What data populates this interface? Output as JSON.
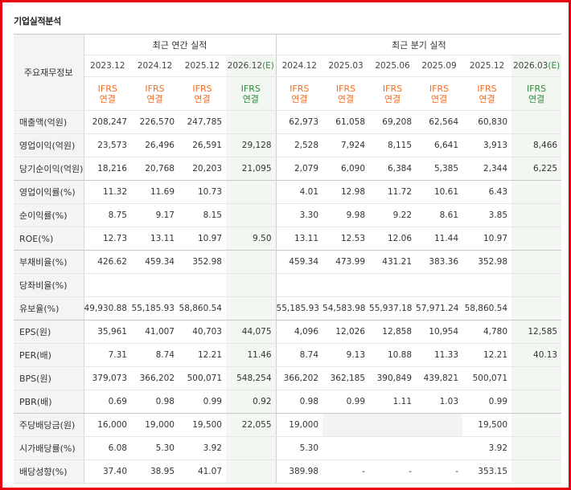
{
  "title": "기업실적분석",
  "corner_label": "주요재무정보",
  "groups": {
    "annual": "최근 연간 실적",
    "quarterly": "최근 분기 실적"
  },
  "periods": [
    {
      "label": "2023.12",
      "estimate": false
    },
    {
      "label": "2024.12",
      "estimate": false
    },
    {
      "label": "2025.12",
      "estimate": false
    },
    {
      "label": "2026.12",
      "estimate": true
    },
    {
      "label": "2024.12",
      "estimate": false
    },
    {
      "label": "2025.03",
      "estimate": false
    },
    {
      "label": "2025.06",
      "estimate": false
    },
    {
      "label": "2025.09",
      "estimate": false
    },
    {
      "label": "2025.12",
      "estimate": false
    },
    {
      "label": "2026.03",
      "estimate": true
    }
  ],
  "estimate_mark": "(E)",
  "accounting": {
    "line1": "IFRS",
    "line2": "연결"
  },
  "rows": [
    {
      "label": "매출액(억원)",
      "values": [
        "208,247",
        "226,570",
        "247,785",
        "",
        "62,973",
        "61,058",
        "69,208",
        "62,564",
        "60,830",
        ""
      ],
      "group_end": false
    },
    {
      "label": "영업이익(억원)",
      "values": [
        "23,573",
        "26,496",
        "26,591",
        "29,128",
        "2,528",
        "7,924",
        "8,115",
        "6,641",
        "3,913",
        "8,466"
      ],
      "group_end": false
    },
    {
      "label": "당기순이익(억원)",
      "values": [
        "18,216",
        "20,768",
        "20,203",
        "21,095",
        "2,079",
        "6,090",
        "6,384",
        "5,385",
        "2,344",
        "6,225"
      ],
      "group_end": true
    },
    {
      "label": "영업이익률(%)",
      "values": [
        "11.32",
        "11.69",
        "10.73",
        "",
        "4.01",
        "12.98",
        "11.72",
        "10.61",
        "6.43",
        ""
      ],
      "group_end": false
    },
    {
      "label": "순이익률(%)",
      "values": [
        "8.75",
        "9.17",
        "8.15",
        "",
        "3.30",
        "9.98",
        "9.22",
        "8.61",
        "3.85",
        ""
      ],
      "group_end": false
    },
    {
      "label": "ROE(%)",
      "values": [
        "12.73",
        "13.11",
        "10.97",
        "9.50",
        "13.11",
        "12.53",
        "12.06",
        "11.44",
        "10.97",
        ""
      ],
      "group_end": true
    },
    {
      "label": "부채비율(%)",
      "values": [
        "426.62",
        "459.34",
        "352.98",
        "",
        "459.34",
        "473.99",
        "431.21",
        "383.36",
        "352.98",
        ""
      ],
      "group_end": false
    },
    {
      "label": "당좌비율(%)",
      "values": [
        "",
        "",
        "",
        "",
        "",
        "",
        "",
        "",
        "",
        ""
      ],
      "group_end": false
    },
    {
      "label": "유보율(%)",
      "values": [
        "49,930.88",
        "55,185.93",
        "58,860.54",
        "",
        "55,185.93",
        "54,583.98",
        "55,937.18",
        "57,971.24",
        "58,860.54",
        ""
      ],
      "group_end": true
    },
    {
      "label": "EPS(원)",
      "values": [
        "35,961",
        "41,007",
        "40,703",
        "44,075",
        "4,096",
        "12,026",
        "12,858",
        "10,954",
        "4,780",
        "12,585"
      ],
      "group_end": false
    },
    {
      "label": "PER(배)",
      "values": [
        "7.31",
        "8.74",
        "12.21",
        "11.46",
        "8.74",
        "9.13",
        "10.88",
        "11.33",
        "12.21",
        "40.13"
      ],
      "group_end": false
    },
    {
      "label": "BPS(원)",
      "values": [
        "379,073",
        "366,202",
        "500,071",
        "548,254",
        "366,202",
        "362,185",
        "390,849",
        "439,821",
        "500,071",
        ""
      ],
      "group_end": false
    },
    {
      "label": "PBR(배)",
      "values": [
        "0.69",
        "0.98",
        "0.99",
        "0.92",
        "0.98",
        "0.99",
        "1.11",
        "1.03",
        "0.99",
        ""
      ],
      "group_end": true
    },
    {
      "label": "주당배당금(원)",
      "values": [
        "16,000",
        "19,000",
        "19,500",
        "22,055",
        "19,000",
        "",
        "",
        "",
        "19,500",
        ""
      ],
      "group_end": false,
      "grey_cells": [
        5,
        6,
        7
      ]
    },
    {
      "label": "시가배당률(%)",
      "values": [
        "6.08",
        "5.30",
        "3.92",
        "",
        "5.30",
        "",
        "",
        "",
        "3.92",
        ""
      ],
      "group_end": false
    },
    {
      "label": "배당성향(%)",
      "values": [
        "37.40",
        "38.95",
        "41.07",
        "",
        "389.98",
        "-",
        "-",
        "-",
        "353.15",
        ""
      ],
      "group_end": false
    }
  ]
}
